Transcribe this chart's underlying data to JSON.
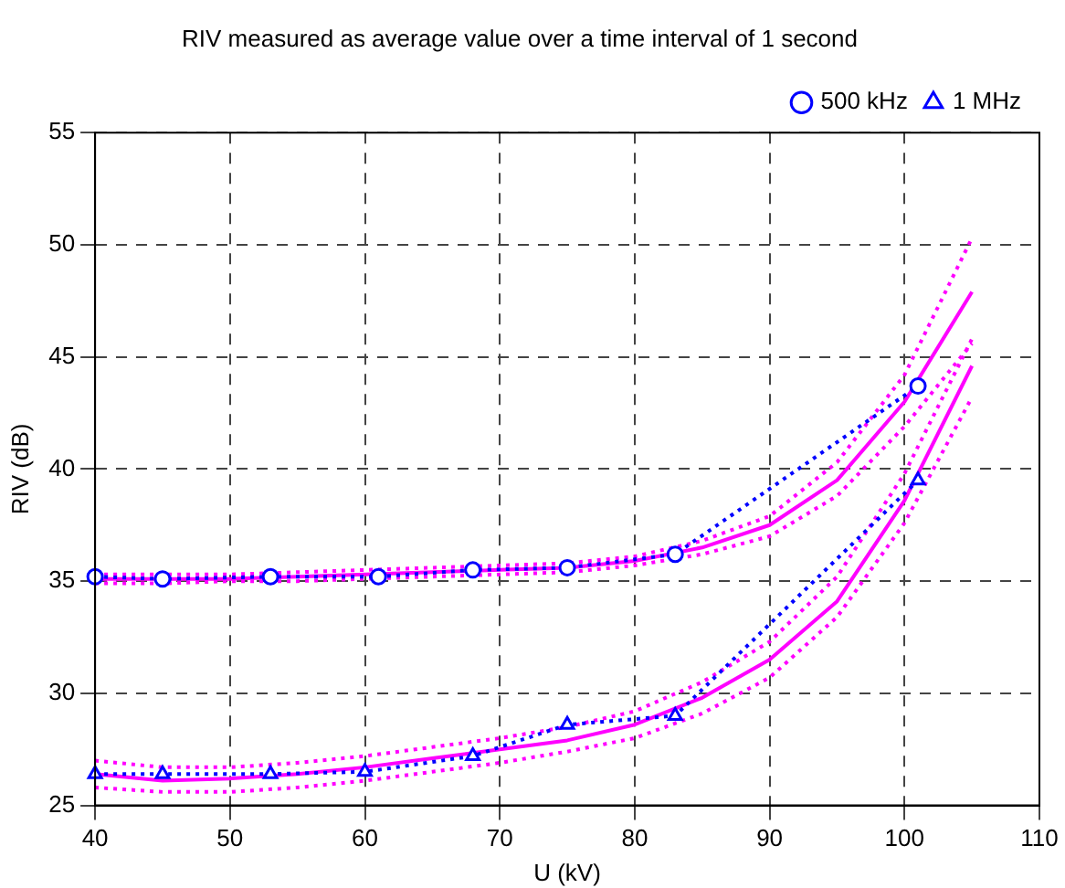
{
  "chart_data": {
    "type": "line",
    "title": "RIV measured as average value over a time interval of 1 second",
    "xlabel": "U (kV)",
    "ylabel": "RIV (dB)",
    "xlim": [
      40,
      110
    ],
    "xticks": [
      40,
      50,
      60,
      70,
      80,
      90,
      100,
      110
    ],
    "ylim": [
      25,
      55
    ],
    "yticks": [
      25,
      30,
      35,
      40,
      45,
      50,
      55
    ],
    "grid": true,
    "legend": "top right",
    "series": [
      {
        "name": "500 kHz",
        "color": "#0000ff",
        "marker": "circle",
        "line_style": "dotted",
        "x": [
          40,
          45,
          53,
          61,
          68,
          75,
          83,
          101
        ],
        "values": [
          35.2,
          35.1,
          35.2,
          35.2,
          35.5,
          35.6,
          36.2,
          43.7
        ]
      },
      {
        "name": "1 MHz",
        "color": "#0000ff",
        "marker": "triangle",
        "line_style": "dotted",
        "x": [
          40,
          45,
          53,
          60,
          68,
          75,
          83,
          101
        ],
        "values": [
          26.4,
          26.4,
          26.4,
          26.5,
          27.2,
          28.6,
          29.0,
          39.5
        ]
      },
      {
        "color": "#ff00ff",
        "marker": "none",
        "line_style": "solid",
        "x": [
          40,
          45,
          50,
          55,
          60,
          65,
          70,
          75,
          80,
          85,
          90,
          95,
          100,
          105
        ],
        "values": [
          35.1,
          35.1,
          35.1,
          35.2,
          35.3,
          35.4,
          35.5,
          35.6,
          35.9,
          36.5,
          37.5,
          39.5,
          43.0,
          47.9
        ]
      },
      {
        "color": "#ff00ff",
        "marker": "none",
        "line_style": "dotted",
        "x": [
          40,
          45,
          50,
          55,
          60,
          65,
          70,
          75,
          80,
          85,
          90,
          95,
          100,
          105
        ],
        "values": [
          35.3,
          35.3,
          35.3,
          35.4,
          35.5,
          35.6,
          35.7,
          35.8,
          36.1,
          36.8,
          37.9,
          40.3,
          44.2,
          50.3
        ]
      },
      {
        "color": "#ff00ff",
        "marker": "none",
        "line_style": "dotted",
        "x": [
          40,
          45,
          50,
          55,
          60,
          65,
          70,
          75,
          80,
          85,
          90,
          95,
          100,
          105
        ],
        "values": [
          34.9,
          34.9,
          35.0,
          35.0,
          35.1,
          35.2,
          35.3,
          35.4,
          35.7,
          36.2,
          37.0,
          38.8,
          41.9,
          45.6
        ]
      },
      {
        "color": "#ff00ff",
        "marker": "none",
        "line_style": "solid",
        "x": [
          40,
          45,
          50,
          55,
          60,
          65,
          70,
          75,
          80,
          85,
          90,
          95,
          100,
          105
        ],
        "values": [
          26.4,
          26.1,
          26.2,
          26.4,
          26.7,
          27.1,
          27.5,
          27.9,
          28.6,
          29.8,
          31.5,
          34.1,
          38.6,
          44.6
        ]
      },
      {
        "color": "#ff00ff",
        "marker": "none",
        "line_style": "dotted",
        "x": [
          40,
          45,
          50,
          55,
          60,
          65,
          70,
          75,
          80,
          85,
          90,
          95,
          100,
          105
        ],
        "values": [
          27.0,
          26.7,
          26.7,
          26.9,
          27.2,
          27.6,
          28.0,
          28.5,
          29.2,
          30.5,
          32.3,
          35.2,
          39.8,
          45.8
        ]
      },
      {
        "color": "#ff00ff",
        "marker": "none",
        "line_style": "dotted",
        "x": [
          40,
          45,
          50,
          55,
          60,
          65,
          70,
          75,
          80,
          85,
          90,
          95,
          100,
          105
        ],
        "values": [
          25.8,
          25.6,
          25.6,
          25.8,
          26.1,
          26.5,
          26.9,
          27.4,
          28.0,
          29.1,
          30.7,
          33.4,
          37.6,
          43.2
        ]
      }
    ]
  }
}
